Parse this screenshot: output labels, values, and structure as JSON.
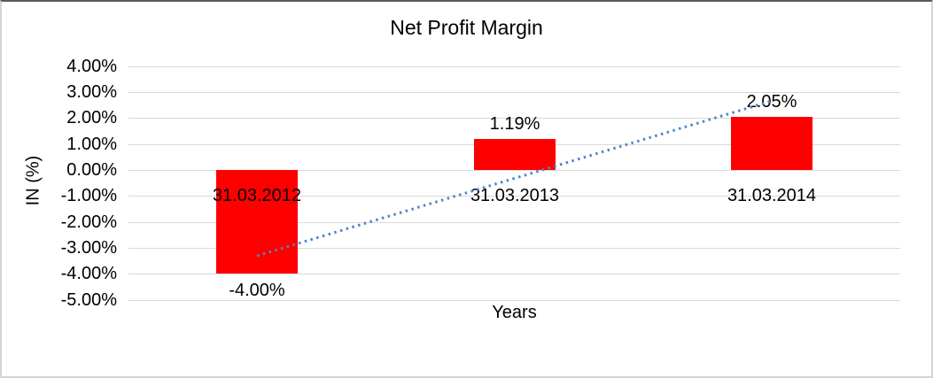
{
  "window": {
    "background": "#ffffff",
    "border_color": "#d4d4d4"
  },
  "chart_data": {
    "type": "bar",
    "title": "Net Profit Margin",
    "xlabel": "Years",
    "ylabel": "IN (%)",
    "categories": [
      "31.03.2012",
      "31.03.2013",
      "31.03.2014"
    ],
    "values": [
      -4.0,
      1.19,
      2.05
    ],
    "data_labels": [
      "-4.00%",
      "1.19%",
      "2.05%"
    ],
    "y_ticks": [
      {
        "value": 4,
        "label": "4.00%"
      },
      {
        "value": 3,
        "label": "3.00%"
      },
      {
        "value": 2,
        "label": "2.00%"
      },
      {
        "value": 1,
        "label": "1.00%"
      },
      {
        "value": 0,
        "label": "0.00%"
      },
      {
        "value": -1,
        "label": "-1.00%"
      },
      {
        "value": -2,
        "label": "-2.00%"
      },
      {
        "value": -3,
        "label": "-3.00%"
      },
      {
        "value": -4,
        "label": "-4.00%"
      },
      {
        "value": -5,
        "label": "-5.00%"
      }
    ],
    "ylim": [
      -5,
      4
    ],
    "grid": true,
    "legend": "none",
    "bar_color": "#ff0000",
    "gridline_color": "#d9d9d9",
    "text_color": "#000000",
    "trendline": {
      "type": "linear",
      "style": "dotted",
      "color": "#4f86c6",
      "start_pct": -3.31,
      "end_pct": 2.66
    }
  }
}
